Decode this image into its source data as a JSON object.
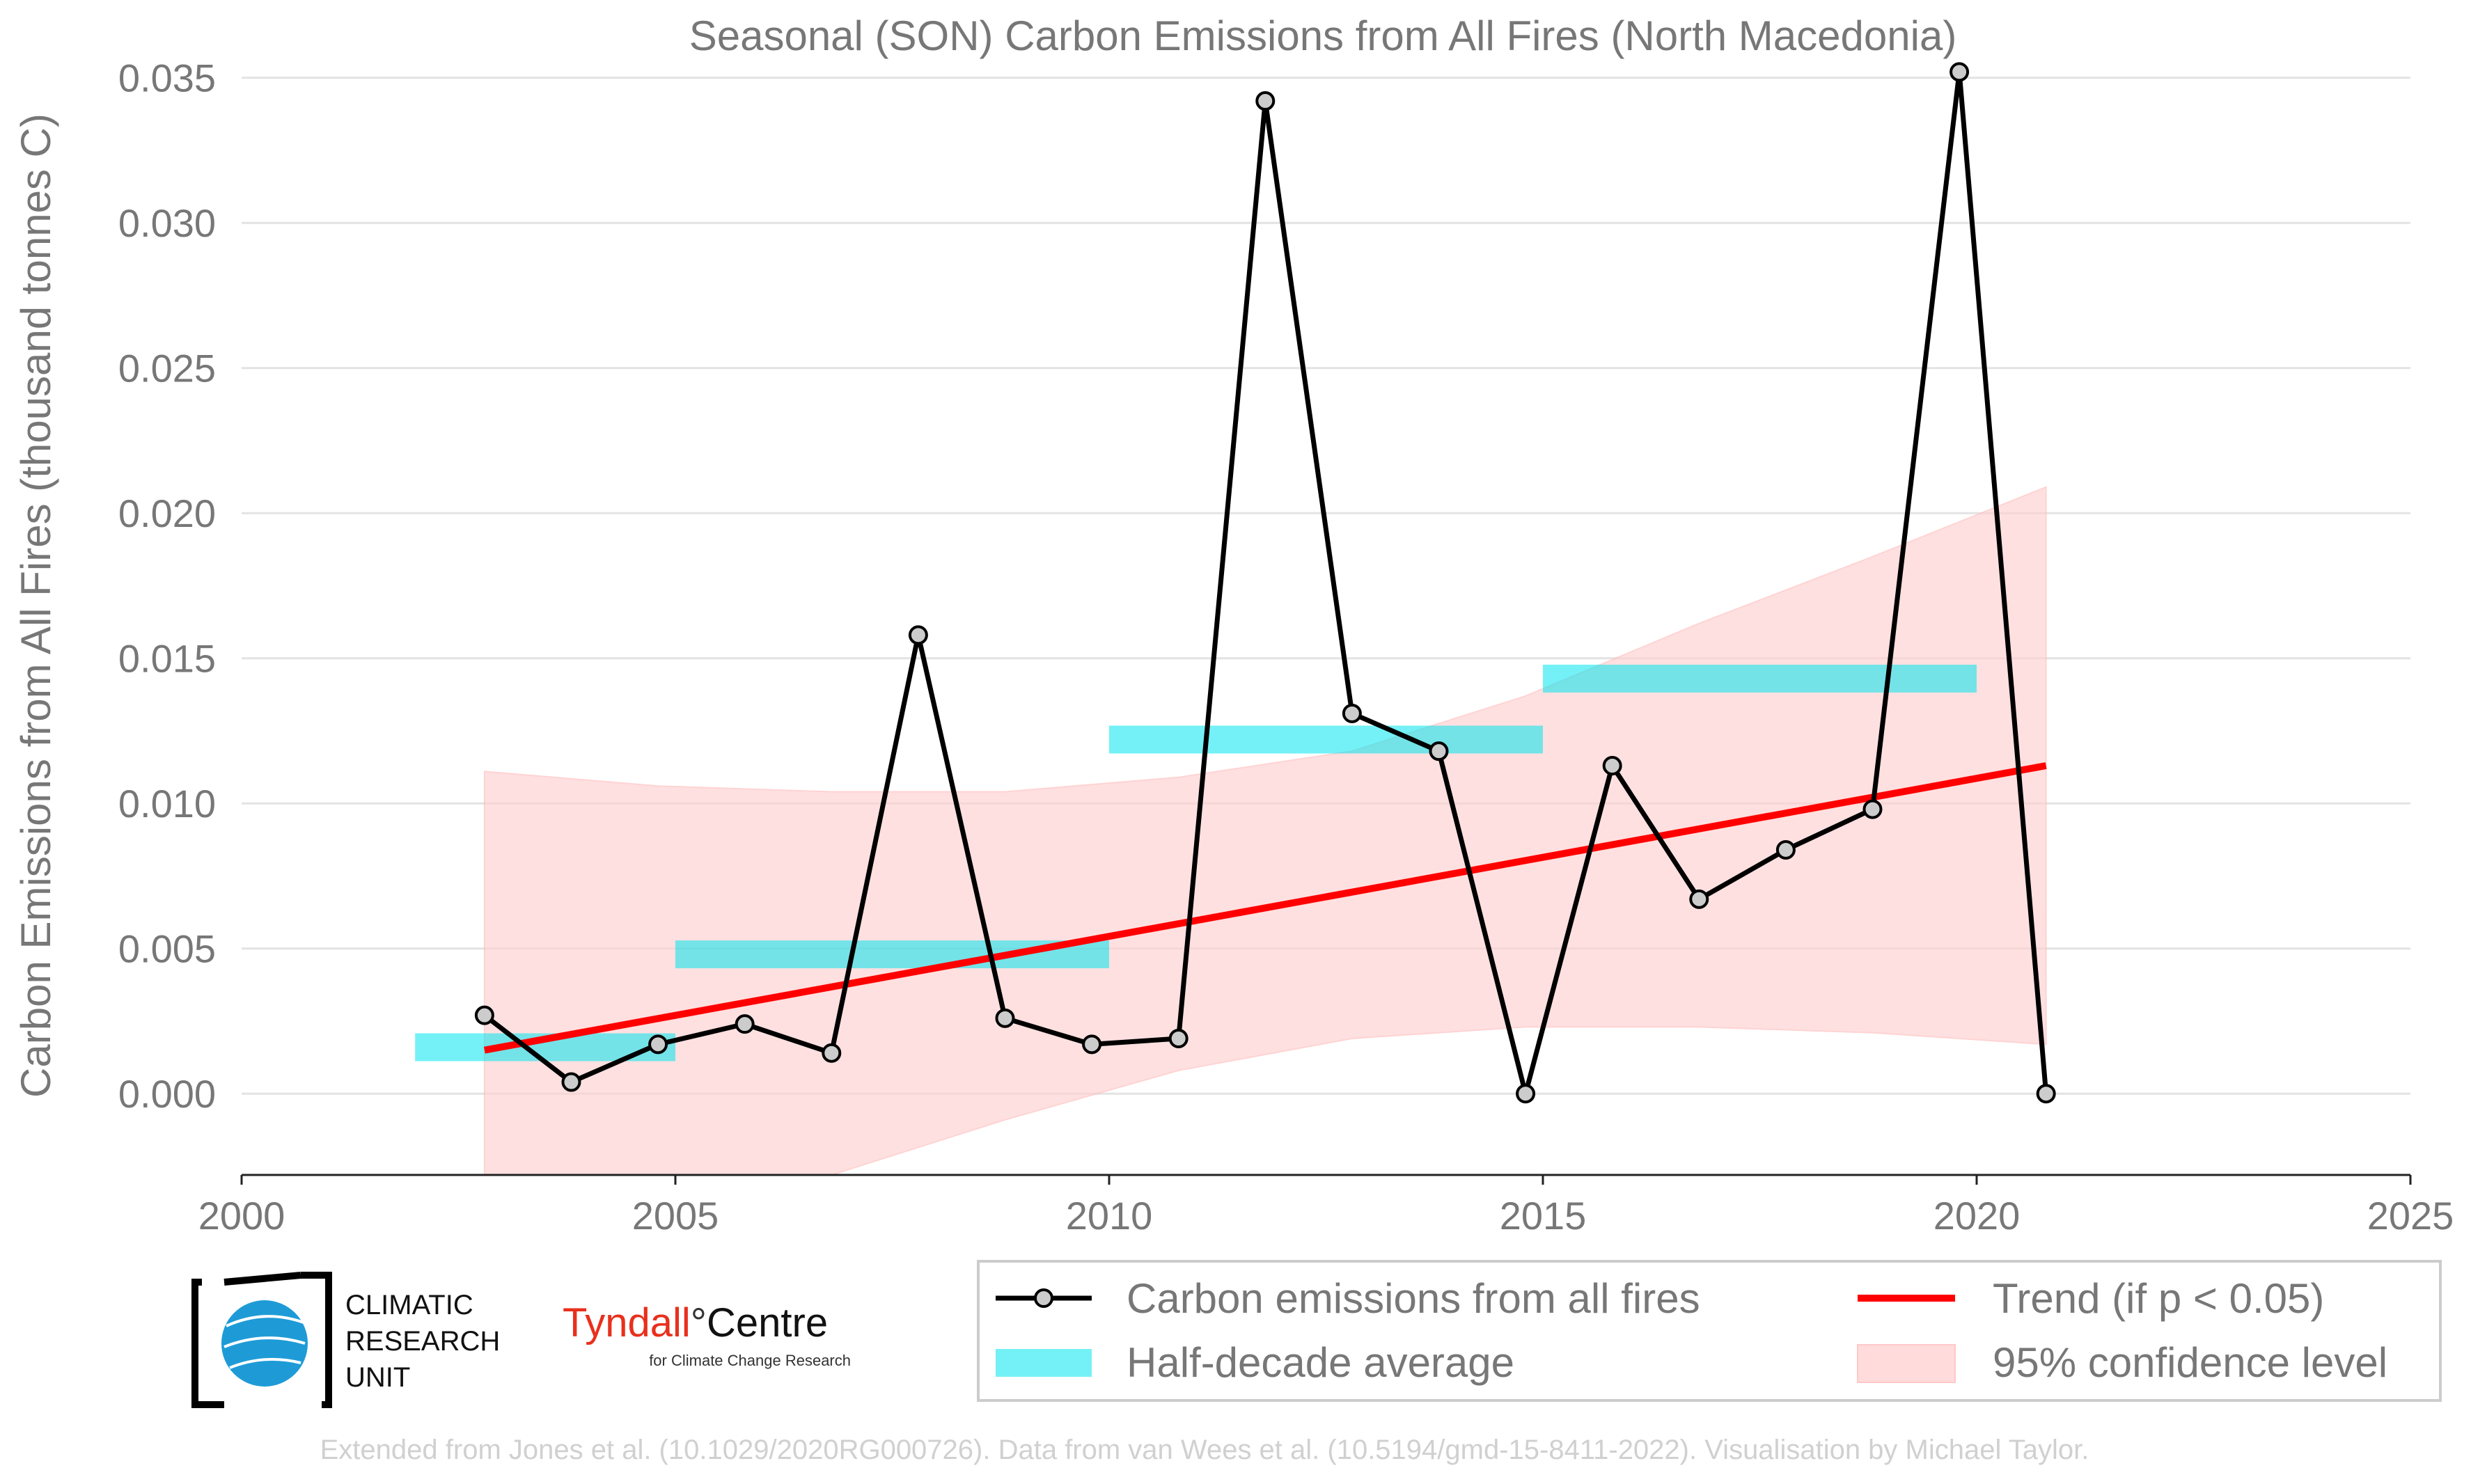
{
  "colors": {
    "series": "#000000",
    "marker_fill": "#cccccc",
    "trend": "#ff0000",
    "half_decade": "#00e5ee",
    "confidence": "#ffd0d0",
    "text": "#777777",
    "tyndall_red": "#e8301c",
    "cru_blue": "#1e9bd7"
  },
  "chart_data": {
    "type": "line",
    "title": "Seasonal (SON) Carbon Emissions from All Fires (North Macedonia)",
    "ylabel": "Carbon Emissions from All Fires (thousand tonnes C)",
    "xlabel": "",
    "xlim": [
      2000,
      2025
    ],
    "ylim": [
      -0.0028,
      0.036
    ],
    "x_ticks": [
      2000,
      2005,
      2010,
      2015,
      2020,
      2025
    ],
    "y_ticks": [
      "0.000",
      "0.005",
      "0.010",
      "0.015",
      "0.020",
      "0.025",
      "0.030",
      "0.035"
    ],
    "y_tick_values": [
      0,
      0.005,
      0.01,
      0.015,
      0.02,
      0.025,
      0.03,
      0.035
    ],
    "grid": "horizontal",
    "series": [
      {
        "name": "Carbon emissions from all fires",
        "x": [
          2002.8,
          2003.8,
          2004.8,
          2005.8,
          2006.8,
          2007.8,
          2008.8,
          2009.8,
          2010.8,
          2011.8,
          2012.8,
          2013.8,
          2014.8,
          2015.8,
          2016.8,
          2017.8,
          2018.8,
          2019.8,
          2020.8
        ],
        "y": [
          0.0027,
          0.0004,
          0.0017,
          0.0024,
          0.0014,
          0.0158,
          0.0026,
          0.0017,
          0.0019,
          0.0342,
          0.0131,
          0.0118,
          0.0,
          0.0113,
          0.0067,
          0.0084,
          0.0098,
          0.0352,
          0.0
        ]
      }
    ],
    "half_decade_average": {
      "name": "Half-decade average",
      "segments": [
        {
          "x0": 2002,
          "x1": 2005,
          "y": 0.0016
        },
        {
          "x0": 2005,
          "x1": 2010,
          "y": 0.0048
        },
        {
          "x0": 2010,
          "x1": 2015,
          "y": 0.0122
        },
        {
          "x0": 2015,
          "x1": 2020,
          "y": 0.0143
        }
      ]
    },
    "trend": {
      "name": "Trend (if p < 0.05)",
      "x": [
        2002.8,
        2020.8
      ],
      "y": [
        0.0015,
        0.0113
      ]
    },
    "confidence_band": {
      "name": "95% confidence level",
      "x": [
        2002.8,
        2004.8,
        2006.8,
        2008.8,
        2010.8,
        2012.8,
        2014.8,
        2016.8,
        2018.8,
        2020.8
      ],
      "upper": [
        0.0111,
        0.0106,
        0.0104,
        0.0104,
        0.0109,
        0.0118,
        0.0137,
        0.0162,
        0.0185,
        0.0209
      ],
      "lower": [
        -0.009,
        -0.006,
        -0.0032,
        -0.0009,
        0.0008,
        0.0019,
        0.0023,
        0.0023,
        0.0021,
        0.0017
      ]
    }
  },
  "legend": {
    "items": [
      {
        "label": "Carbon emissions from all fires"
      },
      {
        "label": "Trend (if p < 0.05)"
      },
      {
        "label": "Half-decade average"
      },
      {
        "label": "95% confidence level"
      }
    ]
  },
  "logos": {
    "cru_line1": "CLIMATIC",
    "cru_line2": "RESEARCH",
    "cru_line3": "UNIT",
    "tyndall_red": "Tyndall",
    "tyndall_degree": "°",
    "tyndall_black": "Centre",
    "tyndall_sub": "for Climate Change Research"
  },
  "footer": "Extended from Jones et al. (10.1029/2020RG000726). Data from van Wees et al. (10.5194/gmd-15-8411-2022). Visualisation by Michael Taylor."
}
